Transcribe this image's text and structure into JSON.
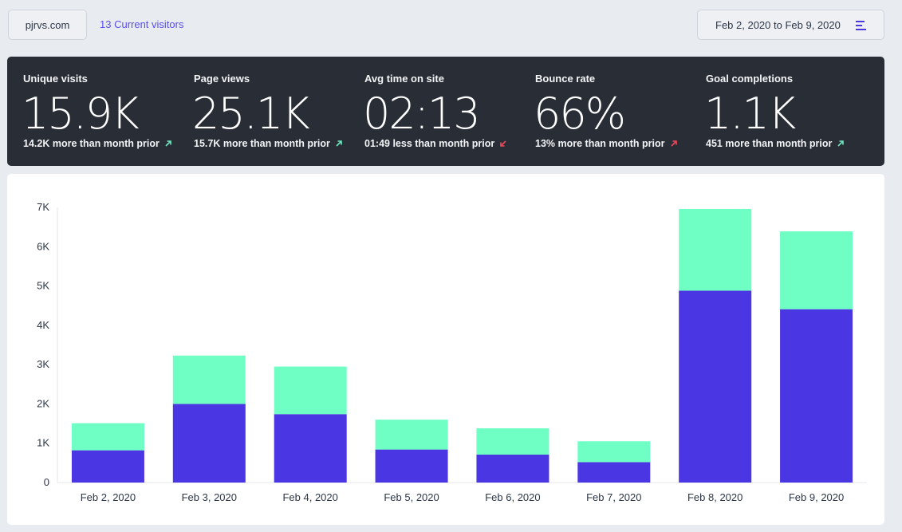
{
  "header": {
    "site_label": "pjrvs.com",
    "visitors_label": "13 Current visitors",
    "date_range_label": "Feb 2, 2020 to Feb 9, 2020"
  },
  "stats": [
    {
      "label": "Unique visits",
      "value": "15.9K",
      "change": "14.2K more than month prior",
      "trend": "up",
      "trend_color": "#6ee7c0"
    },
    {
      "label": "Page views",
      "value": "25.1K",
      "change": "15.7K more than month prior",
      "trend": "up",
      "trend_color": "#6ee7c0"
    },
    {
      "label": "Avg time on site",
      "value": "02:13",
      "change": "01:49 less than month prior",
      "trend": "down",
      "trend_color": "#f0485a"
    },
    {
      "label": "Bounce rate",
      "value": "66%",
      "change": "13% more than month prior",
      "trend": "up",
      "trend_color": "#f0485a"
    },
    {
      "label": "Goal completions",
      "value": "1.1K",
      "change": "451 more than month prior",
      "trend": "up",
      "trend_color": "#6ee7c0"
    }
  ],
  "chart_data": {
    "type": "bar",
    "stacked": true,
    "categories": [
      "Feb 2, 2020",
      "Feb 3, 2020",
      "Feb 4, 2020",
      "Feb 5, 2020",
      "Feb 6, 2020",
      "Feb 7, 2020",
      "Feb 8, 2020",
      "Feb 9, 2020"
    ],
    "series": [
      {
        "values": [
          820,
          2000,
          1740,
          840,
          710,
          520,
          4880,
          4410
        ],
        "color": "#4b36e3"
      },
      {
        "values": [
          690,
          1230,
          1210,
          760,
          670,
          530,
          2080,
          1980
        ],
        "color": "#6fffc5"
      }
    ],
    "yticks": [
      "0",
      "1K",
      "2K",
      "3K",
      "4K",
      "5K",
      "6K",
      "7K"
    ],
    "ylim": [
      0,
      7000
    ],
    "grid": false
  }
}
